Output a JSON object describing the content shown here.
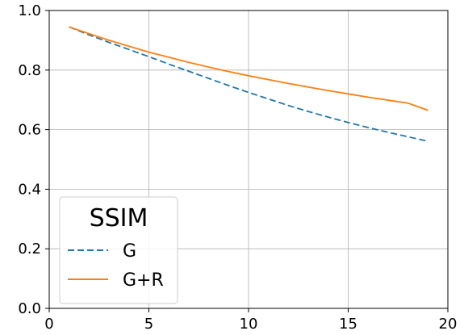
{
  "chart_data": {
    "type": "line",
    "xlim": [
      0,
      20
    ],
    "ylim": [
      0.0,
      1.0
    ],
    "x_ticks": [
      0,
      5,
      10,
      15,
      20
    ],
    "x_tick_labels": [
      "0",
      "5",
      "10",
      "15",
      "20"
    ],
    "y_ticks": [
      0.0,
      0.2,
      0.4,
      0.6,
      0.8,
      1.0
    ],
    "y_tick_labels": [
      "0.0",
      "0.2",
      "0.4",
      "0.6",
      "0.8",
      "1.0"
    ],
    "grid": true,
    "legend": {
      "title": "SSIM",
      "placement": "lower-left"
    },
    "x": [
      1,
      2,
      3,
      4,
      5,
      6,
      7,
      8,
      9,
      10,
      11,
      12,
      13,
      14,
      15,
      16,
      17,
      18,
      19
    ],
    "series": [
      {
        "name": "G",
        "color": "#1f77b4",
        "style": "dashed",
        "values": [
          0.945,
          0.918,
          0.893,
          0.869,
          0.845,
          0.82,
          0.796,
          0.772,
          0.748,
          0.725,
          0.703,
          0.681,
          0.661,
          0.642,
          0.624,
          0.607,
          0.591,
          0.576,
          0.561
        ]
      },
      {
        "name": "G+R",
        "color": "#ff7f0e",
        "style": "solid",
        "values": [
          0.945,
          0.922,
          0.9,
          0.88,
          0.86,
          0.843,
          0.826,
          0.81,
          0.795,
          0.781,
          0.768,
          0.755,
          0.743,
          0.731,
          0.72,
          0.709,
          0.699,
          0.689,
          0.665
        ]
      }
    ]
  }
}
